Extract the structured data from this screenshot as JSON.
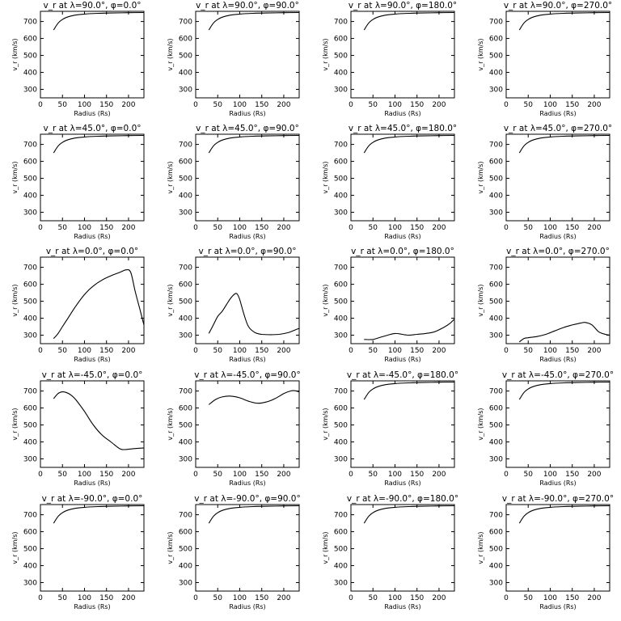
{
  "chart_data": [
    {
      "type": "line",
      "title": "v_r at λ=90.0°, φ=0.0°",
      "xlabel": "Radius (Rs)",
      "ylabel": "v_r (km/s)",
      "xlim": [
        0,
        235
      ],
      "ylim": [
        250,
        760
      ],
      "xticks": [
        0,
        50,
        100,
        150,
        200
      ],
      "yticks": [
        300,
        400,
        500,
        600,
        700
      ],
      "x": [
        30,
        40,
        50,
        60,
        80,
        100,
        130,
        160,
        200,
        235
      ],
      "values": [
        650,
        690,
        712,
        725,
        738,
        744,
        748,
        750,
        752,
        753
      ]
    },
    {
      "type": "line",
      "title": "v_r at λ=90.0°, φ=90.0°",
      "xlabel": "Radius (Rs)",
      "ylabel": "v_r (km/s)",
      "xlim": [
        0,
        235
      ],
      "ylim": [
        250,
        760
      ],
      "xticks": [
        0,
        50,
        100,
        150,
        200
      ],
      "yticks": [
        300,
        400,
        500,
        600,
        700
      ],
      "x": [
        30,
        40,
        50,
        60,
        80,
        100,
        130,
        160,
        200,
        235
      ],
      "values": [
        650,
        690,
        712,
        725,
        738,
        744,
        748,
        750,
        752,
        753
      ]
    },
    {
      "type": "line",
      "title": "v_r at λ=90.0°, φ=180.0°",
      "xlabel": "Radius (Rs)",
      "ylabel": "v_r (km/s)",
      "xlim": [
        0,
        235
      ],
      "ylim": [
        250,
        760
      ],
      "xticks": [
        0,
        50,
        100,
        150,
        200
      ],
      "yticks": [
        300,
        400,
        500,
        600,
        700
      ],
      "x": [
        30,
        40,
        50,
        60,
        80,
        100,
        130,
        160,
        200,
        235
      ],
      "values": [
        650,
        690,
        712,
        725,
        738,
        744,
        748,
        750,
        752,
        753
      ]
    },
    {
      "type": "line",
      "title": "v_r at λ=90.0°, φ=270.0°",
      "xlabel": "Radius (Rs)",
      "ylabel": "v_r (km/s)",
      "xlim": [
        0,
        235
      ],
      "ylim": [
        250,
        760
      ],
      "xticks": [
        0,
        50,
        100,
        150,
        200
      ],
      "yticks": [
        300,
        400,
        500,
        600,
        700
      ],
      "x": [
        30,
        40,
        50,
        60,
        80,
        100,
        130,
        160,
        200,
        235
      ],
      "values": [
        650,
        690,
        712,
        725,
        738,
        744,
        748,
        750,
        752,
        753
      ]
    },
    {
      "type": "line",
      "title": "v_r at λ=45.0°, φ=0.0°",
      "xlabel": "Radius (Rs)",
      "ylabel": "v_r (km/s)",
      "xlim": [
        0,
        235
      ],
      "ylim": [
        250,
        760
      ],
      "xticks": [
        0,
        50,
        100,
        150,
        200
      ],
      "yticks": [
        300,
        400,
        500,
        600,
        700
      ],
      "x": [
        30,
        40,
        50,
        60,
        80,
        100,
        130,
        160,
        200,
        235
      ],
      "values": [
        650,
        690,
        712,
        725,
        738,
        744,
        748,
        750,
        752,
        753
      ]
    },
    {
      "type": "line",
      "title": "v_r at λ=45.0°, φ=90.0°",
      "xlabel": "Radius (Rs)",
      "ylabel": "v_r (km/s)",
      "xlim": [
        0,
        235
      ],
      "ylim": [
        250,
        760
      ],
      "xticks": [
        0,
        50,
        100,
        150,
        200
      ],
      "yticks": [
        300,
        400,
        500,
        600,
        700
      ],
      "x": [
        30,
        40,
        50,
        60,
        80,
        100,
        130,
        160,
        200,
        235
      ],
      "values": [
        650,
        690,
        712,
        725,
        738,
        744,
        748,
        750,
        752,
        753
      ]
    },
    {
      "type": "line",
      "title": "v_r at λ=45.0°, φ=180.0°",
      "xlabel": "Radius (Rs)",
      "ylabel": "v_r (km/s)",
      "xlim": [
        0,
        235
      ],
      "ylim": [
        250,
        760
      ],
      "xticks": [
        0,
        50,
        100,
        150,
        200
      ],
      "yticks": [
        300,
        400,
        500,
        600,
        700
      ],
      "x": [
        30,
        40,
        50,
        60,
        80,
        100,
        130,
        160,
        200,
        235
      ],
      "values": [
        650,
        690,
        712,
        725,
        738,
        744,
        748,
        750,
        752,
        753
      ]
    },
    {
      "type": "line",
      "title": "v_r at λ=45.0°, φ=270.0°",
      "xlabel": "Radius (Rs)",
      "ylabel": "v_r (km/s)",
      "xlim": [
        0,
        235
      ],
      "ylim": [
        250,
        760
      ],
      "xticks": [
        0,
        50,
        100,
        150,
        200
      ],
      "yticks": [
        300,
        400,
        500,
        600,
        700
      ],
      "x": [
        30,
        40,
        50,
        60,
        80,
        100,
        130,
        160,
        200,
        235
      ],
      "values": [
        650,
        690,
        712,
        725,
        738,
        744,
        748,
        750,
        752,
        753
      ]
    },
    {
      "type": "line",
      "title": "v_r at λ=0.0°, φ=0.0°",
      "xlabel": "Radius (Rs)",
      "ylabel": "v_r (km/s)",
      "xlim": [
        0,
        235
      ],
      "ylim": [
        250,
        760
      ],
      "xticks": [
        0,
        50,
        100,
        150,
        200
      ],
      "yticks": [
        300,
        400,
        500,
        600,
        700
      ],
      "x": [
        30,
        40,
        50,
        60,
        80,
        100,
        120,
        140,
        160,
        180,
        195,
        205,
        215,
        225,
        235
      ],
      "values": [
        280,
        310,
        350,
        390,
        470,
        540,
        590,
        625,
        650,
        670,
        685,
        670,
        560,
        460,
        360
      ]
    },
    {
      "type": "line",
      "title": "v_r at λ=0.0°, φ=90.0°",
      "xlabel": "Radius (Rs)",
      "ylabel": "v_r (km/s)",
      "xlim": [
        0,
        235
      ],
      "ylim": [
        250,
        760
      ],
      "xticks": [
        0,
        50,
        100,
        150,
        200
      ],
      "yticks": [
        300,
        400,
        500,
        600,
        700
      ],
      "x": [
        30,
        40,
        50,
        60,
        70,
        80,
        90,
        95,
        100,
        110,
        120,
        135,
        150,
        170,
        190,
        210,
        225,
        235
      ],
      "values": [
        310,
        360,
        410,
        440,
        480,
        520,
        545,
        540,
        510,
        420,
        350,
        315,
        305,
        303,
        305,
        315,
        330,
        340
      ]
    },
    {
      "type": "line",
      "title": "v_r at λ=0.0°, φ=180.0°",
      "xlabel": "Radius (Rs)",
      "ylabel": "v_r (km/s)",
      "xlim": [
        0,
        235
      ],
      "ylim": [
        250,
        760
      ],
      "xticks": [
        0,
        50,
        100,
        150,
        200
      ],
      "yticks": [
        300,
        400,
        500,
        600,
        700
      ],
      "x": [
        30,
        50,
        70,
        90,
        100,
        110,
        130,
        150,
        170,
        190,
        210,
        225,
        235
      ],
      "values": [
        275,
        275,
        290,
        305,
        310,
        308,
        300,
        305,
        310,
        320,
        345,
        370,
        395
      ]
    },
    {
      "type": "line",
      "title": "v_r at λ=0.0°, φ=270.0°",
      "xlabel": "Radius (Rs)",
      "ylabel": "v_r (km/s)",
      "xlim": [
        0,
        235
      ],
      "ylim": [
        250,
        760
      ],
      "xticks": [
        0,
        50,
        100,
        150,
        200
      ],
      "yticks": [
        300,
        400,
        500,
        600,
        700
      ],
      "x": [
        30,
        40,
        50,
        70,
        90,
        110,
        130,
        150,
        170,
        180,
        195,
        210,
        225,
        235
      ],
      "values": [
        260,
        280,
        285,
        292,
        305,
        325,
        345,
        360,
        372,
        375,
        360,
        320,
        305,
        300
      ]
    },
    {
      "type": "line",
      "title": "v_r at λ=-45.0°, φ=0.0°",
      "xlabel": "Radius (Rs)",
      "ylabel": "v_r (km/s)",
      "xlim": [
        0,
        235
      ],
      "ylim": [
        250,
        760
      ],
      "xticks": [
        0,
        50,
        100,
        150,
        200
      ],
      "yticks": [
        300,
        400,
        500,
        600,
        700
      ],
      "x": [
        30,
        40,
        50,
        60,
        70,
        80,
        100,
        120,
        140,
        160,
        180,
        190,
        210,
        235
      ],
      "values": [
        655,
        685,
        695,
        690,
        675,
        650,
        580,
        500,
        440,
        400,
        360,
        355,
        360,
        365
      ]
    },
    {
      "type": "line",
      "title": "v_r at λ=-45.0°, φ=90.0°",
      "xlabel": "Radius (Rs)",
      "ylabel": "v_r (km/s)",
      "xlim": [
        0,
        235
      ],
      "ylim": [
        250,
        760
      ],
      "xticks": [
        0,
        50,
        100,
        150,
        200
      ],
      "yticks": [
        300,
        400,
        500,
        600,
        700
      ],
      "x": [
        30,
        45,
        60,
        80,
        100,
        120,
        140,
        160,
        180,
        200,
        215,
        225,
        235
      ],
      "values": [
        620,
        650,
        665,
        670,
        660,
        640,
        628,
        635,
        655,
        685,
        700,
        702,
        695
      ]
    },
    {
      "type": "line",
      "title": "v_r at λ=-45.0°, φ=180.0°",
      "xlabel": "Radius (Rs)",
      "ylabel": "v_r (km/s)",
      "xlim": [
        0,
        235
      ],
      "ylim": [
        250,
        760
      ],
      "xticks": [
        0,
        50,
        100,
        150,
        200
      ],
      "yticks": [
        300,
        400,
        500,
        600,
        700
      ],
      "x": [
        30,
        40,
        50,
        60,
        80,
        100,
        130,
        160,
        200,
        235
      ],
      "values": [
        650,
        690,
        712,
        725,
        738,
        744,
        748,
        750,
        752,
        753
      ]
    },
    {
      "type": "line",
      "title": "v_r at λ=-45.0°, φ=270.0°",
      "xlabel": "Radius (Rs)",
      "ylabel": "v_r (km/s)",
      "xlim": [
        0,
        235
      ],
      "ylim": [
        250,
        760
      ],
      "xticks": [
        0,
        50,
        100,
        150,
        200
      ],
      "yticks": [
        300,
        400,
        500,
        600,
        700
      ],
      "x": [
        30,
        40,
        50,
        60,
        80,
        100,
        130,
        160,
        200,
        235
      ],
      "values": [
        650,
        690,
        712,
        725,
        738,
        744,
        748,
        750,
        752,
        753
      ]
    },
    {
      "type": "line",
      "title": "v_r at λ=-90.0°, φ=0.0°",
      "xlabel": "Radius (Rs)",
      "ylabel": "v_r (km/s)",
      "xlim": [
        0,
        235
      ],
      "ylim": [
        250,
        760
      ],
      "xticks": [
        0,
        50,
        100,
        150,
        200
      ],
      "yticks": [
        300,
        400,
        500,
        600,
        700
      ],
      "x": [
        30,
        40,
        50,
        60,
        80,
        100,
        130,
        160,
        200,
        235
      ],
      "values": [
        650,
        690,
        712,
        725,
        738,
        744,
        748,
        750,
        752,
        753
      ]
    },
    {
      "type": "line",
      "title": "v_r at λ=-90.0°, φ=90.0°",
      "xlabel": "Radius (Rs)",
      "ylabel": "v_r (km/s)",
      "xlim": [
        0,
        235
      ],
      "ylim": [
        250,
        760
      ],
      "xticks": [
        0,
        50,
        100,
        150,
        200
      ],
      "yticks": [
        300,
        400,
        500,
        600,
        700
      ],
      "x": [
        30,
        40,
        50,
        60,
        80,
        100,
        130,
        160,
        200,
        235
      ],
      "values": [
        650,
        690,
        712,
        725,
        738,
        744,
        748,
        750,
        752,
        753
      ]
    },
    {
      "type": "line",
      "title": "v_r at λ=-90.0°, φ=180.0°",
      "xlabel": "Radius (Rs)",
      "ylabel": "v_r (km/s)",
      "xlim": [
        0,
        235
      ],
      "ylim": [
        250,
        760
      ],
      "xticks": [
        0,
        50,
        100,
        150,
        200
      ],
      "yticks": [
        300,
        400,
        500,
        600,
        700
      ],
      "x": [
        30,
        40,
        50,
        60,
        80,
        100,
        130,
        160,
        200,
        235
      ],
      "values": [
        650,
        690,
        712,
        725,
        738,
        744,
        748,
        750,
        752,
        753
      ]
    },
    {
      "type": "line",
      "title": "v_r at λ=-90.0°, φ=270.0°",
      "xlabel": "Radius (Rs)",
      "ylabel": "v_r (km/s)",
      "xlim": [
        0,
        235
      ],
      "ylim": [
        250,
        760
      ],
      "xticks": [
        0,
        50,
        100,
        150,
        200
      ],
      "yticks": [
        300,
        400,
        500,
        600,
        700
      ],
      "x": [
        30,
        40,
        50,
        60,
        80,
        100,
        130,
        160,
        200,
        235
      ],
      "values": [
        650,
        690,
        712,
        725,
        738,
        744,
        748,
        750,
        752,
        753
      ]
    }
  ]
}
